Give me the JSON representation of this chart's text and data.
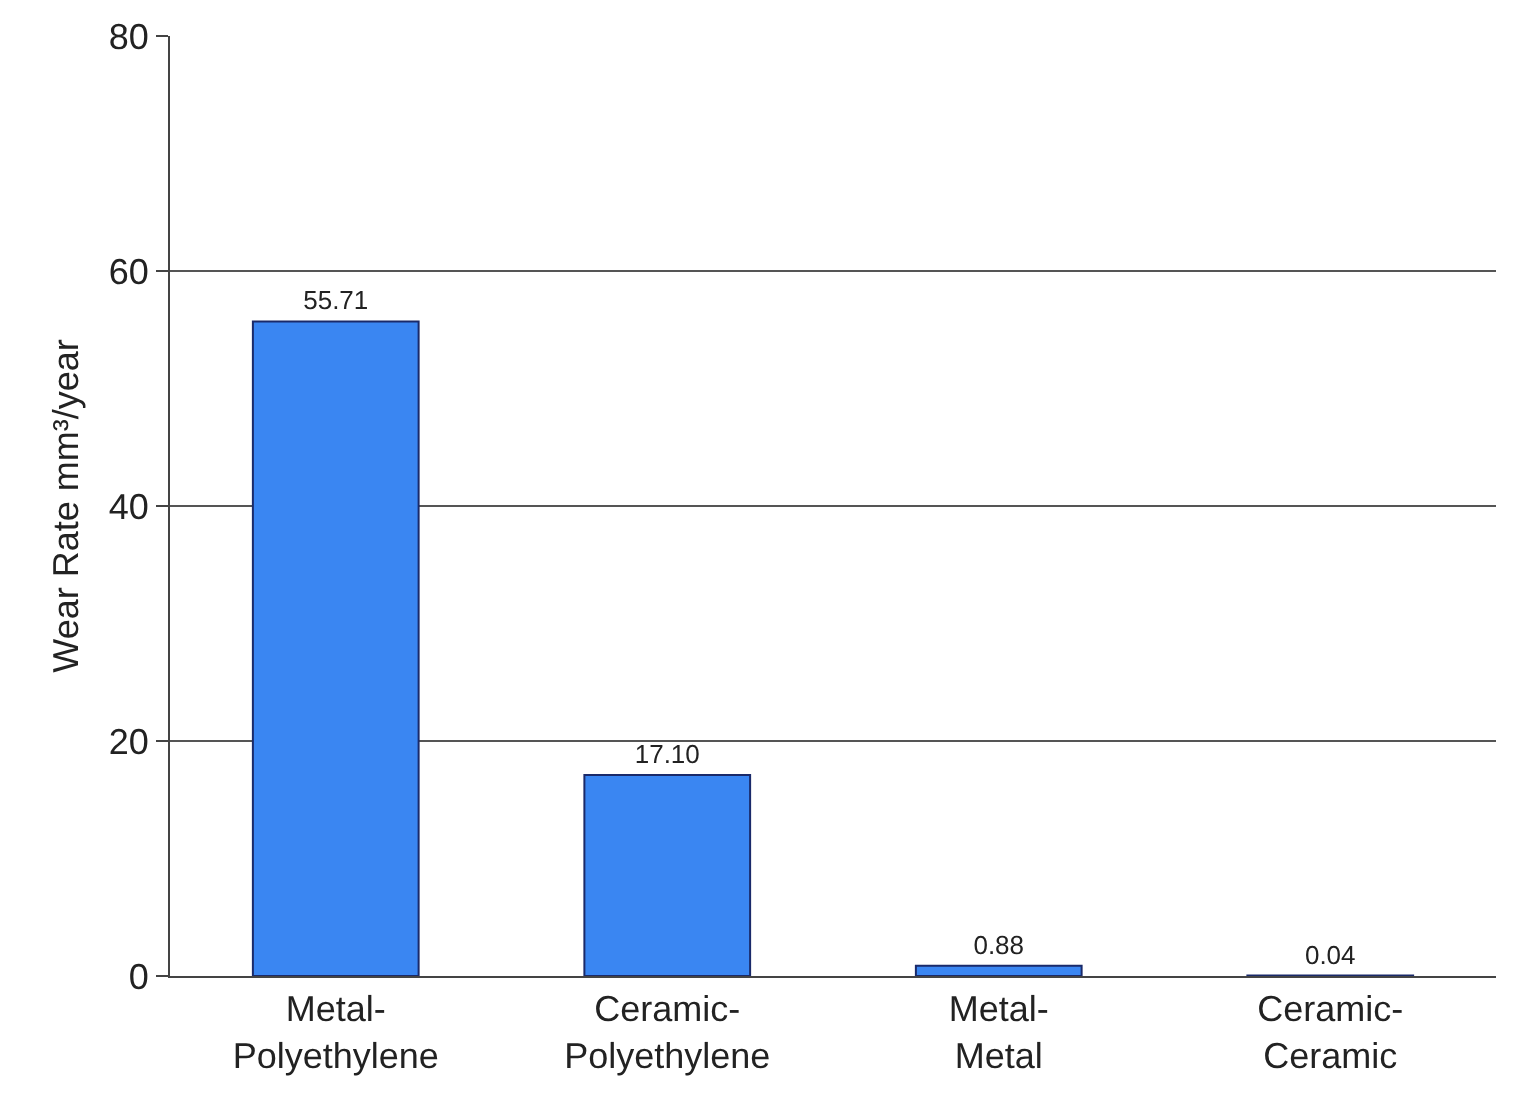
{
  "chart_data": {
    "type": "bar",
    "ylabel": "Wear Rate mm³/year",
    "categories": [
      "Metal-Polyethylene",
      "Ceramic-Polyethylene",
      "Metal-Metal",
      "Ceramic-Ceramic"
    ],
    "values": [
      55.71,
      17.1,
      0.88,
      0.04
    ],
    "value_labels": [
      "55.71",
      "17.10",
      "0.88",
      "0.04"
    ],
    "color": "#3a86f2",
    "ylim": [
      0,
      80
    ],
    "yticks": [
      0,
      20,
      40,
      60,
      80
    ],
    "grid": "y",
    "legend": false
  }
}
